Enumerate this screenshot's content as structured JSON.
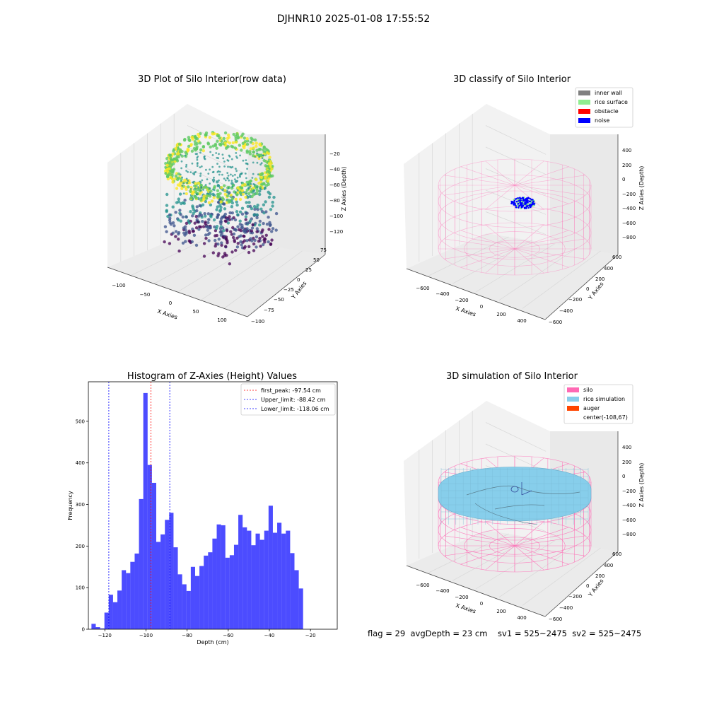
{
  "suptitle": "DJHNR10 2025-01-08 17:55:52",
  "panels": {
    "raw": {
      "title": "3D Plot of Silo Interior(row data)",
      "xlabel": "X Axies",
      "ylabel": "Y Axies",
      "zlabel": "Z Axies (Depth)",
      "x_ticks": [
        "−100",
        "−50",
        "0",
        "50",
        "100"
      ],
      "y_ticks": [
        "75",
        "50",
        "25",
        "0",
        "−25",
        "−50",
        "−75",
        "−100"
      ],
      "z_ticks": [
        "−20",
        "−40",
        "−60",
        "−80",
        "−100",
        "−120"
      ],
      "colormap": [
        "#440154",
        "#3b528b",
        "#21918c",
        "#5ec962",
        "#fde725"
      ]
    },
    "classify": {
      "title": "3D classify of Silo Interior",
      "xlabel": "X Axies",
      "ylabel": "Y Axies",
      "zlabel": "Z Axies (Depth)",
      "x_ticks": [
        "−600",
        "−400",
        "−200",
        "0",
        "200",
        "400"
      ],
      "y_ticks": [
        "600",
        "400",
        "200",
        "0",
        "−200",
        "−400",
        "−600"
      ],
      "z_ticks": [
        "400",
        "200",
        "0",
        "−200",
        "−400",
        "−600",
        "−800"
      ],
      "legend": [
        {
          "label": "inner wall",
          "color": "#808080"
        },
        {
          "label": "rice surface",
          "color": "#90ee90"
        },
        {
          "label": "obstacle",
          "color": "#ff0000"
        },
        {
          "label": "noise",
          "color": "#0000ff"
        }
      ]
    },
    "simulation": {
      "title": "3D simulation of Silo Interior",
      "xlabel": "X Axies",
      "ylabel": "Y Axies",
      "zlabel": "Z Axies (Depth)",
      "x_ticks": [
        "−600",
        "−400",
        "−200",
        "0",
        "200",
        "400"
      ],
      "y_ticks": [
        "600",
        "400",
        "200",
        "0",
        "−200",
        "−400",
        "−600"
      ],
      "z_ticks": [
        "400",
        "200",
        "0",
        "−200",
        "−400",
        "−600",
        "−800"
      ],
      "legend": [
        {
          "label": "silo",
          "color": "#ff69b4"
        },
        {
          "label": "rice simulation",
          "color": "#87ceeb"
        },
        {
          "label": "auger",
          "color": "#ff4500"
        },
        {
          "label": "center(-108,67)",
          "color": ""
        }
      ],
      "footer": "flag = 29  avgDepth = 23 cm    sv1 = 525~2475  sv2 = 525~2475"
    }
  },
  "chart_data": {
    "type": "bar",
    "title": "Histogram of Z-Axies (Height) Values",
    "xlabel": "Depth (cm)",
    "ylabel": "Frequency",
    "xlim": [
      -128,
      -7
    ],
    "ylim": [
      0,
      595
    ],
    "x_ticks": [
      -120,
      -100,
      -80,
      -60,
      -40,
      -20
    ],
    "y_ticks": [
      0,
      100,
      200,
      300,
      400,
      500
    ],
    "bin_start": -126.5,
    "bin_width": 2.1,
    "color": "#0000ff",
    "values": [
      13,
      5,
      2,
      40,
      83,
      65,
      93,
      142,
      135,
      162,
      182,
      313,
      568,
      395,
      352,
      210,
      228,
      263,
      280,
      197,
      132,
      108,
      92,
      150,
      128,
      152,
      177,
      185,
      218,
      252,
      250,
      172,
      178,
      203,
      275,
      245,
      237,
      202,
      230,
      215,
      237,
      297,
      232,
      256,
      230,
      237,
      183,
      142,
      98
    ],
    "lines": [
      {
        "label": "first_peak: -97.54 cm",
        "x": -97.54,
        "color": "#ff0000"
      },
      {
        "label": "Upper_limit: -88.42 cm",
        "x": -88.42,
        "color": "#0000ff"
      },
      {
        "label": "Lower_limit: -118.06 cm",
        "x": -118.06,
        "color": "#0000ff"
      }
    ]
  }
}
